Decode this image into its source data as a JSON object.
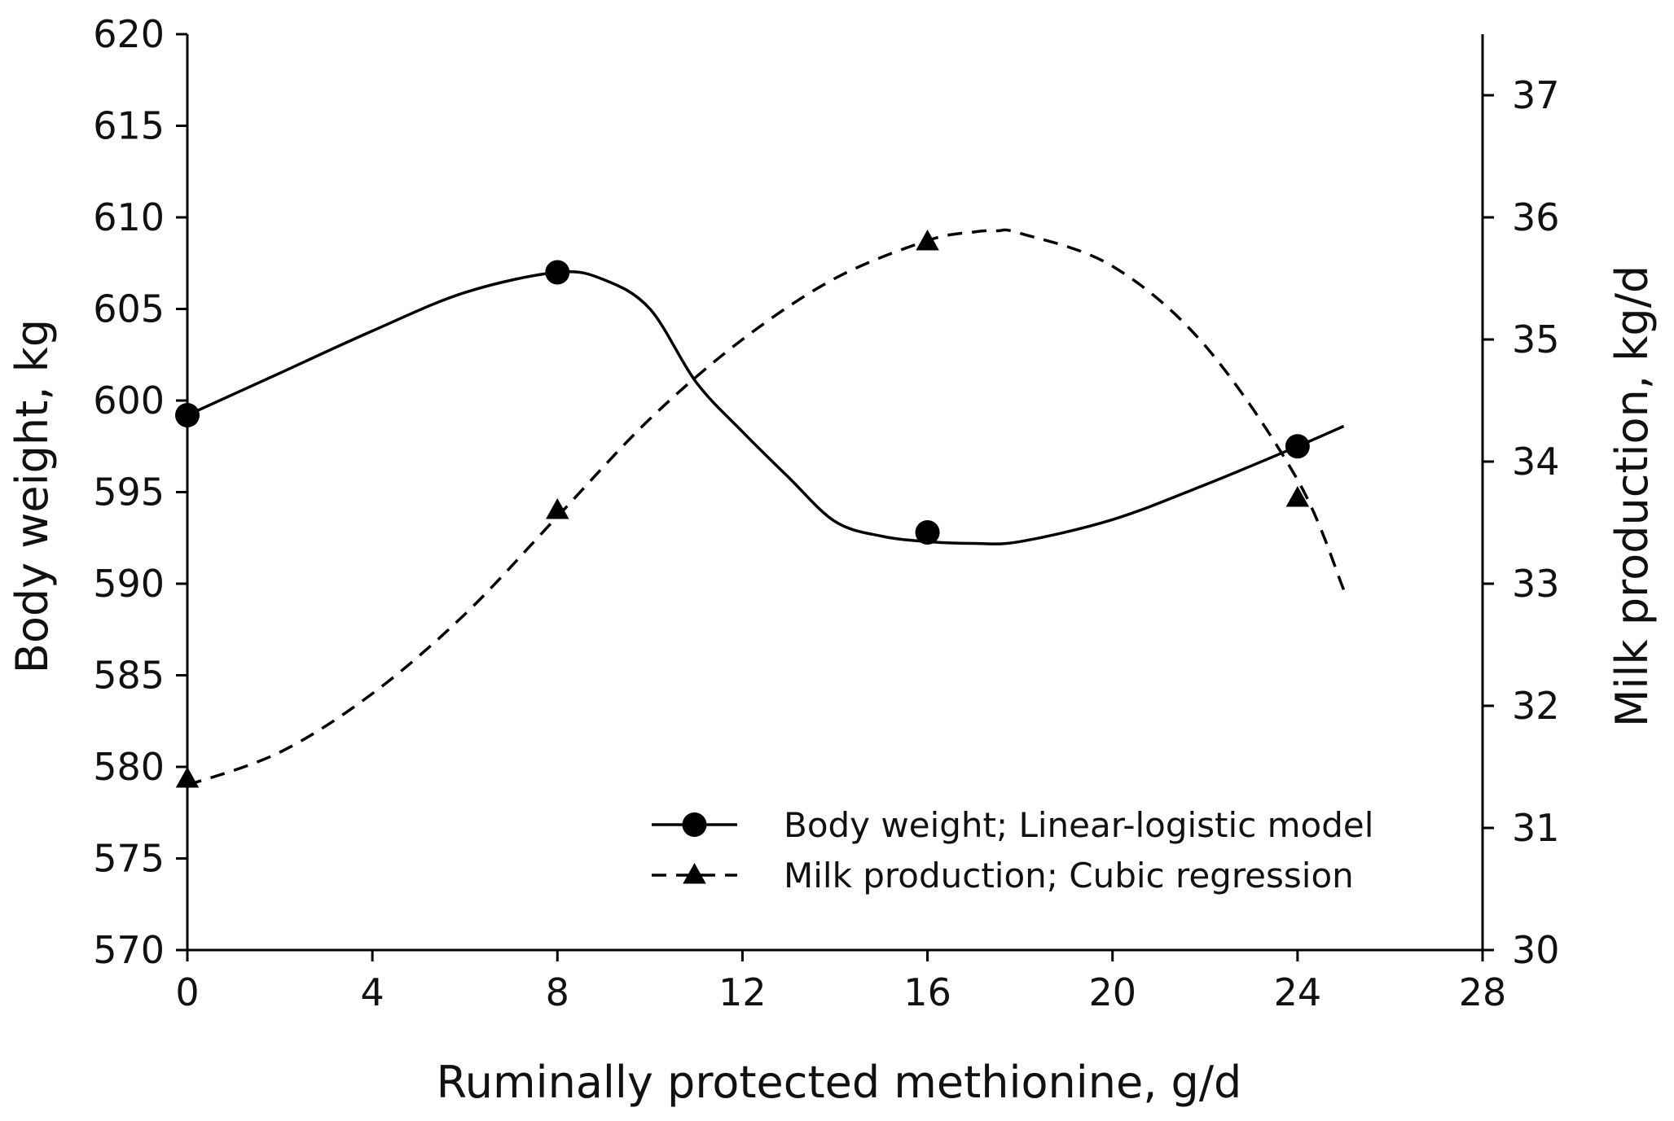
{
  "chart_data": {
    "type": "line",
    "xlabel": "Ruminally protected methionine, g/d",
    "ylabel": "Body weight, kg",
    "y2label": "Milk production, kg/d",
    "xlim": [
      0,
      28
    ],
    "ylim": [
      570,
      620
    ],
    "y2lim": [
      30,
      37.5
    ],
    "x_ticks": [
      0,
      4,
      8,
      12,
      16,
      20,
      24,
      28
    ],
    "y_ticks": [
      570,
      575,
      580,
      585,
      590,
      595,
      600,
      605,
      610,
      615,
      620
    ],
    "y2_ticks": [
      30,
      31,
      32,
      33,
      34,
      35,
      36,
      37
    ],
    "grid": false,
    "legend_position": "bottom-right",
    "series": [
      {
        "name": "Body weight; Linear-logistic model",
        "axis": "left",
        "marker": "circle",
        "line_style": "solid",
        "points": {
          "x": [
            0,
            8,
            16,
            24
          ],
          "y": [
            599.2,
            607.0,
            592.8,
            597.5
          ]
        },
        "fitted_curve": {
          "x": [
            0,
            2,
            4,
            6,
            8,
            9,
            10,
            11,
            12,
            13,
            14,
            15,
            16,
            17,
            18,
            20,
            22,
            24,
            25
          ],
          "y": [
            599.2,
            601.5,
            603.8,
            605.9,
            607.0,
            606.6,
            605.0,
            601.0,
            598.3,
            595.8,
            593.4,
            592.6,
            592.3,
            592.2,
            592.3,
            593.5,
            595.4,
            597.5,
            598.6
          ]
        },
        "color": "#000000"
      },
      {
        "name": "Milk production; Cubic regression",
        "axis": "right",
        "marker": "triangle",
        "line_style": "dashed",
        "points": {
          "x": [
            0,
            8,
            16,
            24
          ],
          "y": [
            31.4,
            33.6,
            35.8,
            33.7
          ]
        },
        "fitted_curve": {
          "x": [
            0,
            2,
            4,
            6,
            8,
            10,
            12,
            14,
            16,
            17,
            17.5,
            18,
            20,
            22,
            24,
            25
          ],
          "y": [
            31.35,
            31.62,
            32.1,
            32.75,
            33.55,
            34.35,
            35.0,
            35.5,
            35.81,
            35.88,
            35.89,
            35.87,
            35.6,
            34.95,
            33.85,
            32.95
          ]
        },
        "color": "#000000"
      }
    ]
  }
}
